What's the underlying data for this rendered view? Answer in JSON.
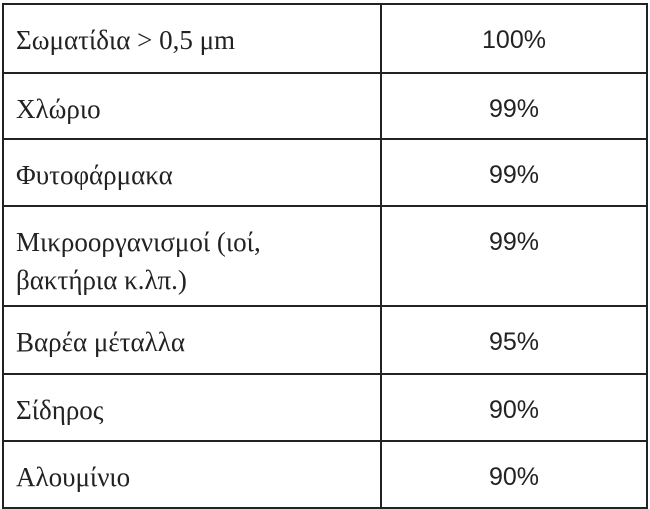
{
  "table": {
    "rows": [
      {
        "name": "Σωματίδια > 0,5 μm",
        "value": "100%"
      },
      {
        "name": "Χλώριο",
        "value": "99%"
      },
      {
        "name": "Φυτοφάρμακα",
        "value": "99%"
      },
      {
        "name": "Μικροοργανισμοί (ιοί, βακτήρια κ.λπ.)",
        "value": "99%"
      },
      {
        "name": "Βαρέα μέταλλα",
        "value": "95%"
      },
      {
        "name": "Σίδηρος",
        "value": "90%"
      },
      {
        "name": "Αλουμίνιο",
        "value": "90%"
      }
    ]
  }
}
